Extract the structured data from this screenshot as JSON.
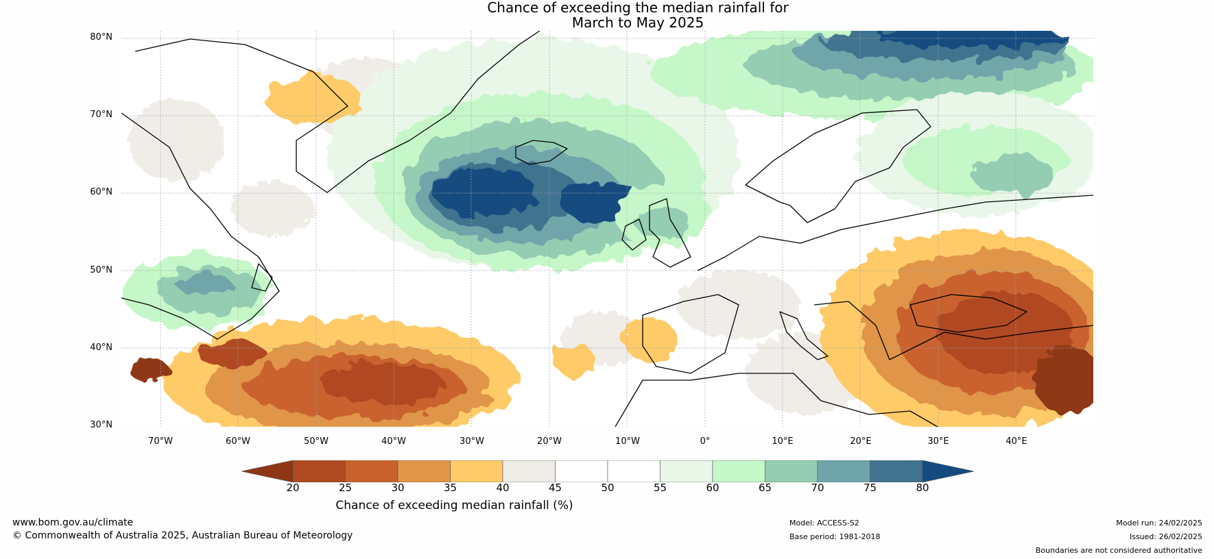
{
  "title_line1": "Chance of exceeding the median rainfall for",
  "title_line2": "March to May 2025",
  "lat_labels": [
    "80°N",
    "70°N",
    "60°N",
    "50°N",
    "40°N",
    "30°N"
  ],
  "lon_labels": [
    "70°W",
    "60°W",
    "50°W",
    "40°W",
    "30°W",
    "20°W",
    "10°W",
    "0°",
    "10°E",
    "20°E",
    "30°E",
    "40°E"
  ],
  "colorbar": {
    "ticks": [
      "20",
      "25",
      "30",
      "35",
      "40",
      "45",
      "50",
      "55",
      "60",
      "65",
      "70",
      "75",
      "80"
    ],
    "colors": [
      "#8e3714",
      "#b04a22",
      "#c9622d",
      "#e09548",
      "#ffcb68",
      "#f0ede8",
      "#ffffff",
      "#ffffff",
      "#e9f7e8",
      "#c6f7c8",
      "#94cdb2",
      "#6fa5aa",
      "#41738e",
      "#134b80"
    ],
    "label": "Chance of exceeding median rainfall (%)"
  },
  "footer": {
    "website": "www.bom.gov.au/climate",
    "copyright": "© Commonwealth of Australia 2025, Australian Bureau of Meteorology",
    "model": "Model: ACCESS-S2",
    "base_period": "Base period: 1981-2018",
    "model_run": "Model run: 24/02/2025",
    "issued": "Issued: 26/02/2025",
    "disclaimer": "Boundaries are not considered authoritative"
  }
}
